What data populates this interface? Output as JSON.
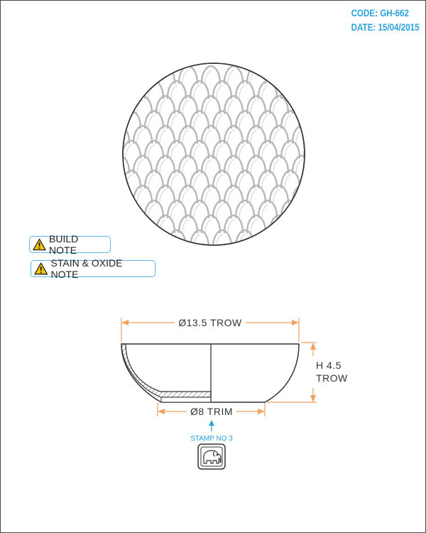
{
  "header": {
    "code_line": "CODE: GH-662",
    "date_line": "DATE: 15/04/2015"
  },
  "notes": {
    "build_label": "BUILD NOTE",
    "stain_label": "STAIN & OXIDE NOTE",
    "icon": "warning-triangle-icon"
  },
  "dimensions": {
    "top_diameter": "Ø13.5 TROW",
    "height_line1": "H 4.5",
    "height_line2": "TROW",
    "base_diameter": "Ø8 TRIM"
  },
  "stamp": {
    "label": "STAMP NO 3",
    "icon": "elephant-icon"
  },
  "colors": {
    "accent_blue": "#2aa3dc",
    "dimension_orange": "#f0a060",
    "line_dark": "#333333",
    "texture_grey": "#b8b8b8",
    "warning_yellow": "#f5c400"
  }
}
